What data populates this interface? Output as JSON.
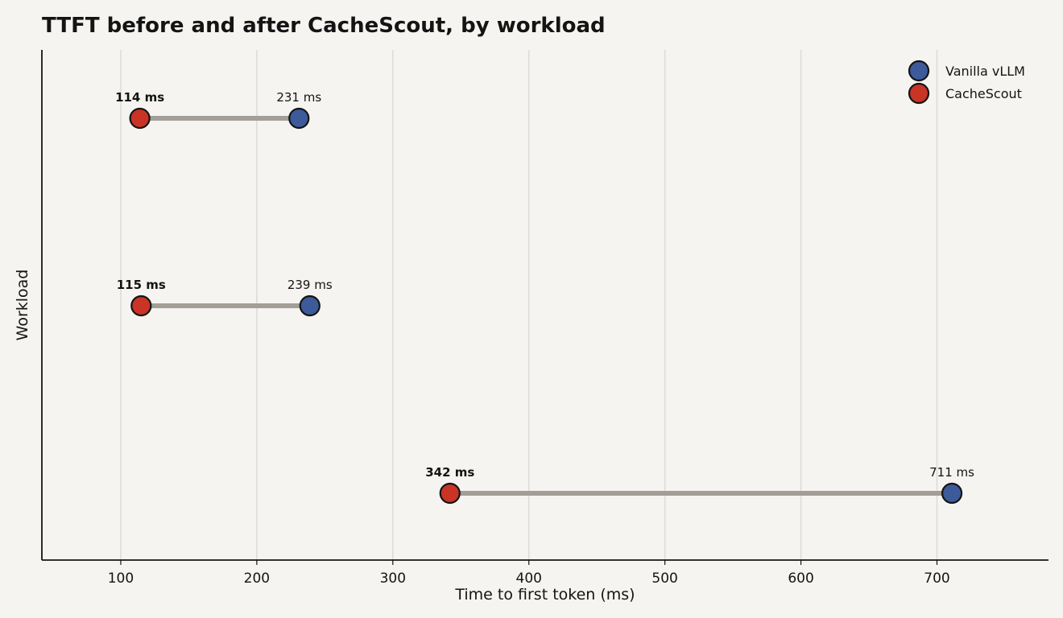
{
  "chart_data": {
    "type": "dumbbell",
    "title": "TTFT before and after CacheScout, by workload",
    "xlabel": "Time to first token (ms)",
    "ylabel": "Workload",
    "xlim": [
      42,
      782
    ],
    "xticks": [
      100,
      200,
      300,
      400,
      500,
      600,
      700
    ],
    "grid": "vertical",
    "legend_position": "top-right",
    "colors": {
      "background": "#f5f4f0",
      "before": "#3d5a9a",
      "after": "#c93426",
      "connector": "#a39e96",
      "grid": "#dddbd6"
    },
    "series": [
      {
        "name": "Vanilla vLLM",
        "key": "before",
        "values": [
          231,
          239,
          711
        ]
      },
      {
        "name": "CacheScout",
        "key": "after",
        "values": [
          114,
          115,
          342
        ]
      }
    ],
    "rows": [
      {
        "before": 231,
        "after": 114,
        "before_label": "231 ms",
        "after_label": "114 ms"
      },
      {
        "before": 239,
        "after": 115,
        "before_label": "239 ms",
        "after_label": "115 ms"
      },
      {
        "before": 711,
        "after": 342,
        "before_label": "711 ms",
        "after_label": "342 ms"
      }
    ]
  }
}
